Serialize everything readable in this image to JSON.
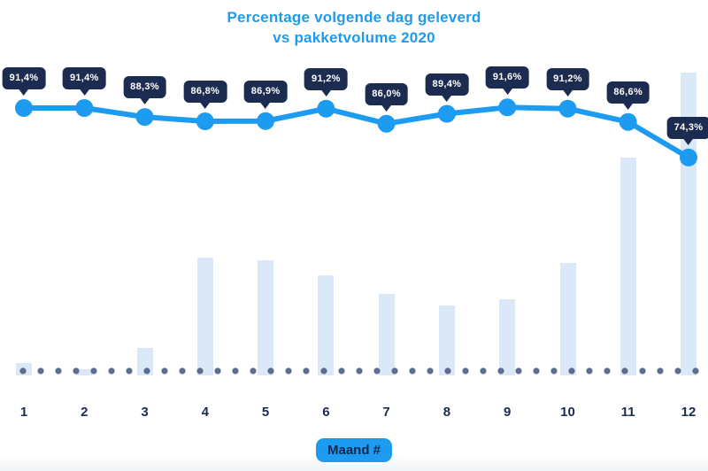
{
  "header": {
    "title_line1": "Percentage volgende dag geleverd",
    "title_line2": "vs pakketvolume 2020"
  },
  "x_axis": {
    "title": "Maand #",
    "labels": [
      "1",
      "2",
      "3",
      "4",
      "5",
      "6",
      "7",
      "8",
      "9",
      "10",
      "11",
      "12"
    ]
  },
  "colors": {
    "accent_blue": "#1d9bf1",
    "navy": "#1c2b50",
    "bar_fill": "#dbe8f8",
    "axis_dot": "#5d6e91",
    "badge_text": "#ffffff",
    "background": "#ffffff"
  },
  "chart_data": {
    "type": "line+bar",
    "title": "Percentage volgende dag geleverd vs pakketvolume 2020",
    "categories": [
      "1",
      "2",
      "3",
      "4",
      "5",
      "6",
      "7",
      "8",
      "9",
      "10",
      "11",
      "12"
    ],
    "series": [
      {
        "name": "Percentage volgende dag geleverd",
        "type": "line",
        "unit": "%",
        "values": [
          91.4,
          91.4,
          88.3,
          86.8,
          86.9,
          91.2,
          86.0,
          89.4,
          91.6,
          91.2,
          86.6,
          74.3
        ],
        "labels": [
          "91,4%",
          "91,4%",
          "88,3%",
          "86,8%",
          "86,9%",
          "91,2%",
          "86,0%",
          "89,4%",
          "91,6%",
          "91,2%",
          "86,6%",
          "74,3%"
        ]
      },
      {
        "name": "Pakketvolume 2020",
        "type": "bar",
        "unit": "relative volume (max month = 100, no y-axis shown)",
        "values": [
          4,
          2,
          9,
          39,
          38,
          33,
          27,
          23,
          25,
          37,
          72,
          100
        ]
      }
    ],
    "xlabel": "Maand #",
    "ylabel": "",
    "legend": false,
    "grid": false,
    "y_axis_shown": false,
    "data_label_style": "dark speech-bubble badges above each line point"
  }
}
